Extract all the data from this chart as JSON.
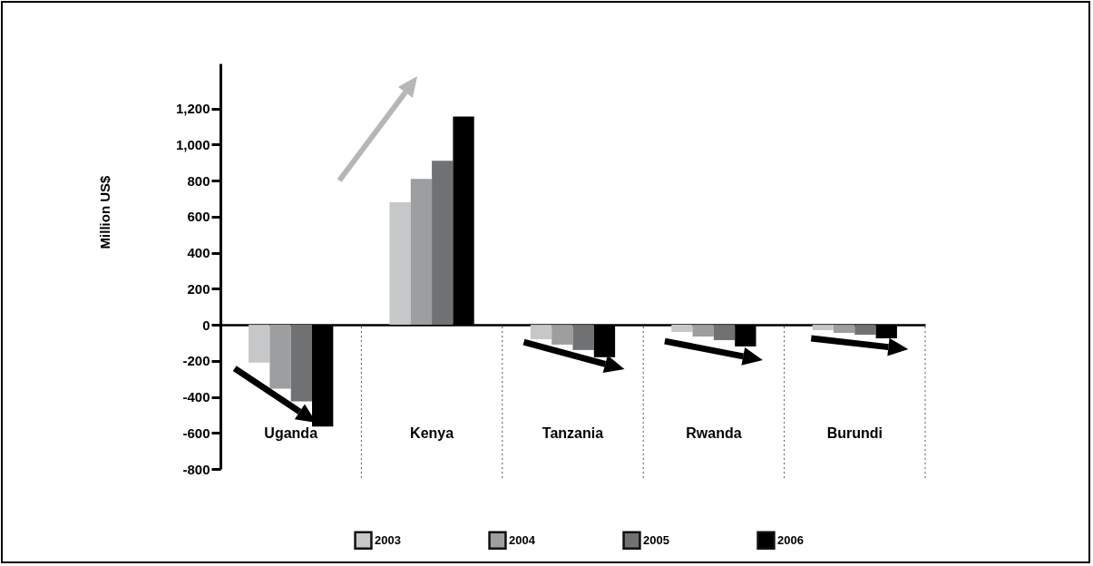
{
  "chart_data": {
    "type": "bar",
    "ylabel": "Million US$",
    "categories": [
      "Uganda",
      "Kenya",
      "Tanzania",
      "Rwanda",
      "Burundi"
    ],
    "series": [
      {
        "name": "2003",
        "color": "#c6c7c9",
        "values": [
          -210,
          680,
          -80,
          -40,
          -30
        ]
      },
      {
        "name": "2004",
        "color": "#9d9ea0",
        "values": [
          -355,
          810,
          -110,
          -65,
          -45
        ]
      },
      {
        "name": "2005",
        "color": "#707173",
        "values": [
          -425,
          910,
          -140,
          -85,
          -55
        ]
      },
      {
        "name": "2006",
        "color": "#000000",
        "values": [
          -565,
          1155,
          -180,
          -120,
          -75
        ]
      }
    ],
    "ylim": [
      -800,
      1450
    ],
    "yticks": [
      -800,
      -600,
      -400,
      -200,
      0,
      200,
      400,
      600,
      800,
      {
        "value": 1000,
        "label": "1,000"
      },
      {
        "value": 1200,
        "label": "1,200"
      }
    ],
    "legend": "bottom"
  }
}
